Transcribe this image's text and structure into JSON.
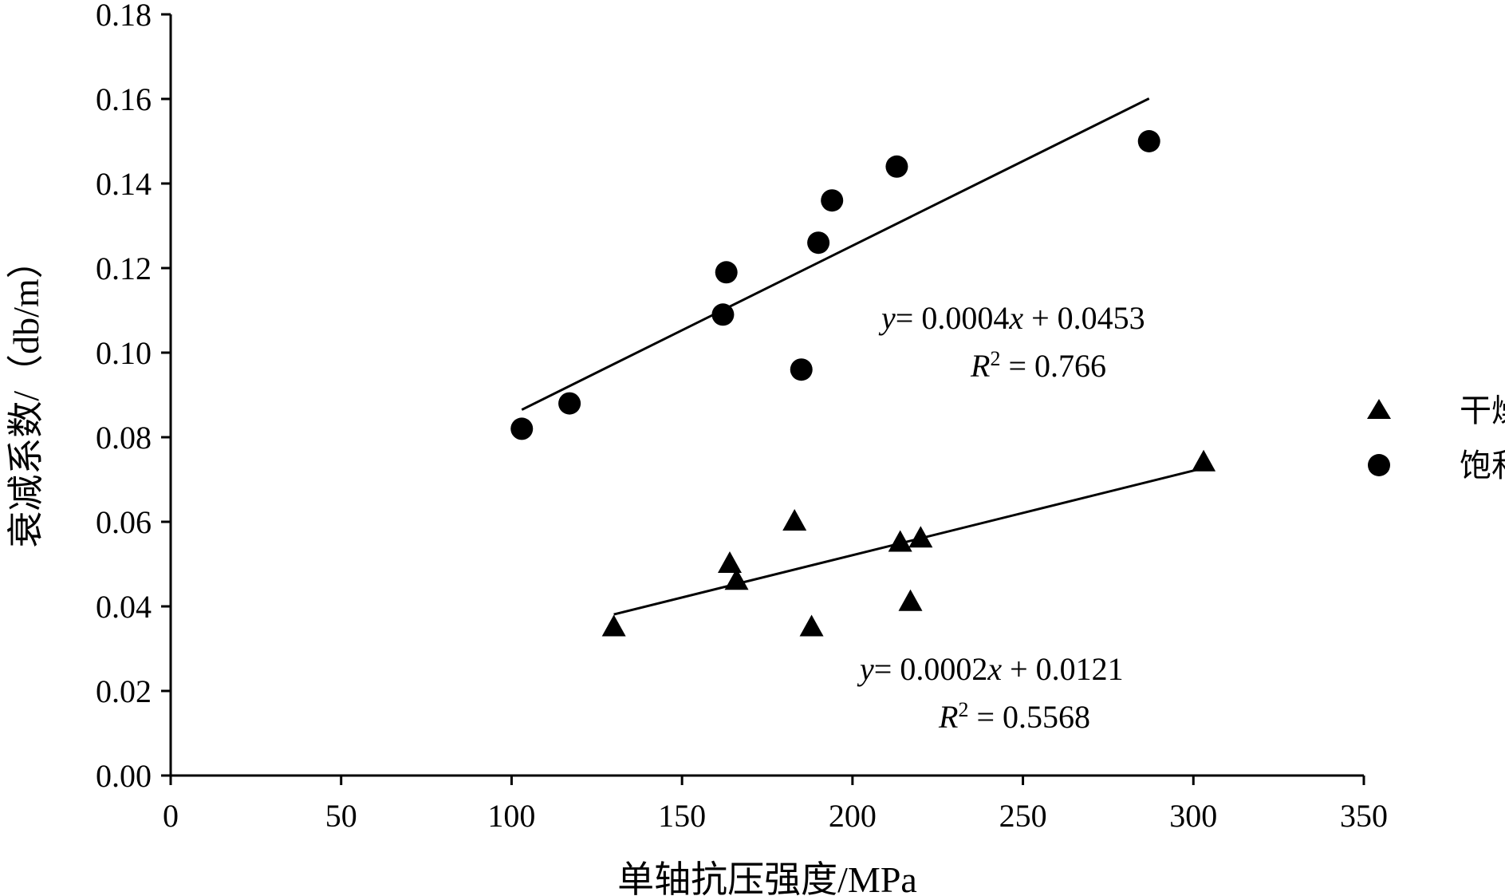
{
  "chart_data": {
    "type": "scatter",
    "xlabel": "单轴抗压强度/MPa",
    "ylabel": "衰减系数/（db/m）",
    "xlim": [
      0,
      350
    ],
    "ylim": [
      0,
      0.18
    ],
    "xticks": [
      "0",
      "50",
      "100",
      "150",
      "200",
      "250",
      "300",
      "350"
    ],
    "yticks": [
      "0.00",
      "0.02",
      "0.04",
      "0.06",
      "0.08",
      "0.10",
      "0.12",
      "0.14",
      "0.16",
      "0.18"
    ],
    "legend_position": "right",
    "series": [
      {
        "name": "干燥",
        "marker": "triangle",
        "points": [
          [
            130,
            0.035
          ],
          [
            164,
            0.05
          ],
          [
            166,
            0.046
          ],
          [
            183,
            0.06
          ],
          [
            188,
            0.035
          ],
          [
            214,
            0.055
          ],
          [
            217,
            0.041
          ],
          [
            220,
            0.056
          ],
          [
            303,
            0.074
          ]
        ],
        "trend": {
          "x_range": [
            130,
            303
          ],
          "slope": 0.0002,
          "intercept": 0.0121
        },
        "equation": "= 0.0002",
        "equation_y": "y",
        "equation_x": "x",
        "equation_tail": " + 0.0121",
        "r2_label": "R",
        "r2_sup": "2",
        "r2_value": " = 0.5568"
      },
      {
        "name": "饱和",
        "marker": "circle",
        "points": [
          [
            103,
            0.082
          ],
          [
            117,
            0.088
          ],
          [
            162,
            0.109
          ],
          [
            163,
            0.119
          ],
          [
            185,
            0.096
          ],
          [
            190,
            0.126
          ],
          [
            194,
            0.136
          ],
          [
            213,
            0.144
          ],
          [
            287,
            0.15
          ]
        ],
        "trend": {
          "x_range": [
            103,
            287
          ],
          "slope": 0.0004,
          "intercept": 0.0453
        },
        "equation": "= 0.0004",
        "equation_y": "y",
        "equation_x": "x",
        "equation_tail": " + 0.0453",
        "r2_label": "R",
        "r2_sup": "2",
        "r2_value": " = 0.766"
      }
    ]
  }
}
